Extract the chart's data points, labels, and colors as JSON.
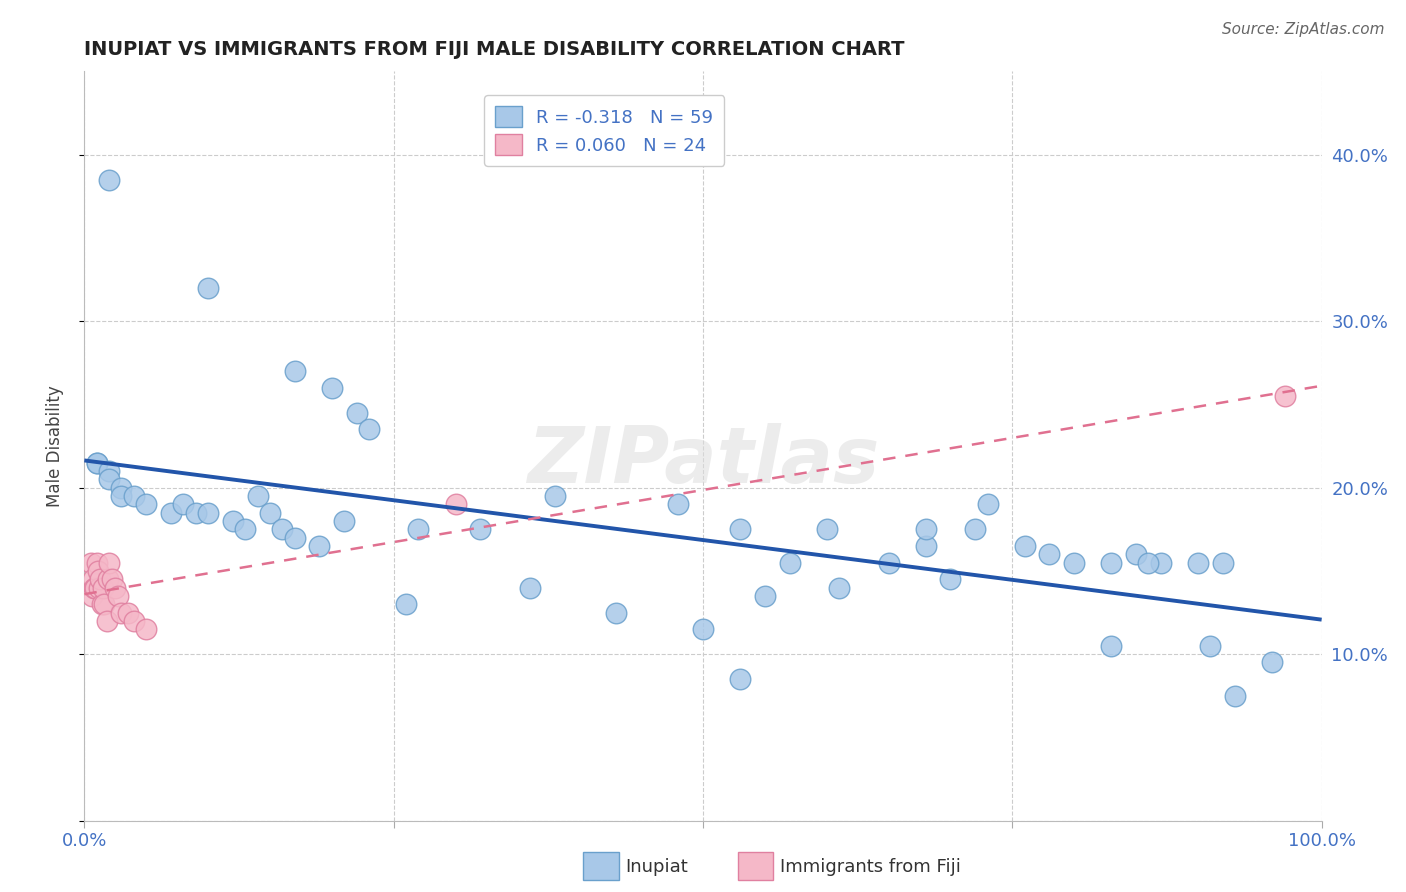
{
  "title": "INUPIAT VS IMMIGRANTS FROM FIJI MALE DISABILITY CORRELATION CHART",
  "source": "Source: ZipAtlas.com",
  "ylabel": "Male Disability",
  "legend_text1": "R = -0.318   N = 59",
  "legend_text2": "R = 0.060   N = 24",
  "legend_label1": "Inupiat",
  "legend_label2": "Immigrants from Fiji",
  "inupiat_x": [
    0.02,
    0.1,
    0.17,
    0.2,
    0.22,
    0.23,
    0.01,
    0.01,
    0.02,
    0.02,
    0.03,
    0.03,
    0.04,
    0.05,
    0.07,
    0.08,
    0.09,
    0.1,
    0.12,
    0.13,
    0.14,
    0.15,
    0.16,
    0.17,
    0.19,
    0.21,
    0.27,
    0.32,
    0.38,
    0.48,
    0.5,
    0.53,
    0.57,
    0.6,
    0.65,
    0.68,
    0.72,
    0.73,
    0.76,
    0.78,
    0.8,
    0.83,
    0.85,
    0.87,
    0.9,
    0.92,
    0.7,
    0.55,
    0.43,
    0.36,
    0.26,
    0.61,
    0.83,
    0.91,
    0.96,
    0.53,
    0.68,
    0.86,
    0.93
  ],
  "inupiat_y": [
    0.385,
    0.32,
    0.27,
    0.26,
    0.245,
    0.235,
    0.215,
    0.215,
    0.21,
    0.205,
    0.2,
    0.195,
    0.195,
    0.19,
    0.185,
    0.19,
    0.185,
    0.185,
    0.18,
    0.175,
    0.195,
    0.185,
    0.175,
    0.17,
    0.165,
    0.18,
    0.175,
    0.175,
    0.195,
    0.19,
    0.115,
    0.175,
    0.155,
    0.175,
    0.155,
    0.165,
    0.175,
    0.19,
    0.165,
    0.16,
    0.155,
    0.155,
    0.16,
    0.155,
    0.155,
    0.155,
    0.145,
    0.135,
    0.125,
    0.14,
    0.13,
    0.14,
    0.105,
    0.105,
    0.095,
    0.085,
    0.175,
    0.155,
    0.075
  ],
  "fiji_x": [
    0.005,
    0.006,
    0.007,
    0.008,
    0.009,
    0.01,
    0.011,
    0.012,
    0.013,
    0.014,
    0.015,
    0.016,
    0.018,
    0.019,
    0.02,
    0.022,
    0.025,
    0.027,
    0.03,
    0.035,
    0.04,
    0.05,
    0.3,
    0.97
  ],
  "fiji_y": [
    0.155,
    0.135,
    0.145,
    0.14,
    0.14,
    0.155,
    0.15,
    0.14,
    0.145,
    0.13,
    0.14,
    0.13,
    0.12,
    0.145,
    0.155,
    0.145,
    0.14,
    0.135,
    0.125,
    0.125,
    0.12,
    0.115,
    0.19,
    0.255
  ],
  "inupiat_color": "#a8c8e8",
  "inupiat_edge_color": "#6aa0cc",
  "fiji_color": "#f5b8c8",
  "fiji_edge_color": "#e080a0",
  "trend_inupiat_color": "#2255aa",
  "trend_fiji_color": "#e07090",
  "watermark": "ZIPatlas",
  "xlim": [
    0.0,
    1.0
  ],
  "ylim": [
    0.0,
    0.45
  ],
  "yticks": [
    0.1,
    0.2,
    0.3,
    0.4
  ],
  "yticklabels": [
    "10.0%",
    "20.0%",
    "30.0%",
    "40.0%"
  ],
  "xticks": [
    0.0,
    0.25,
    0.5,
    0.75,
    1.0
  ],
  "xticklabels_show": [
    "0.0%",
    "",
    "",
    "",
    "100.0%"
  ]
}
